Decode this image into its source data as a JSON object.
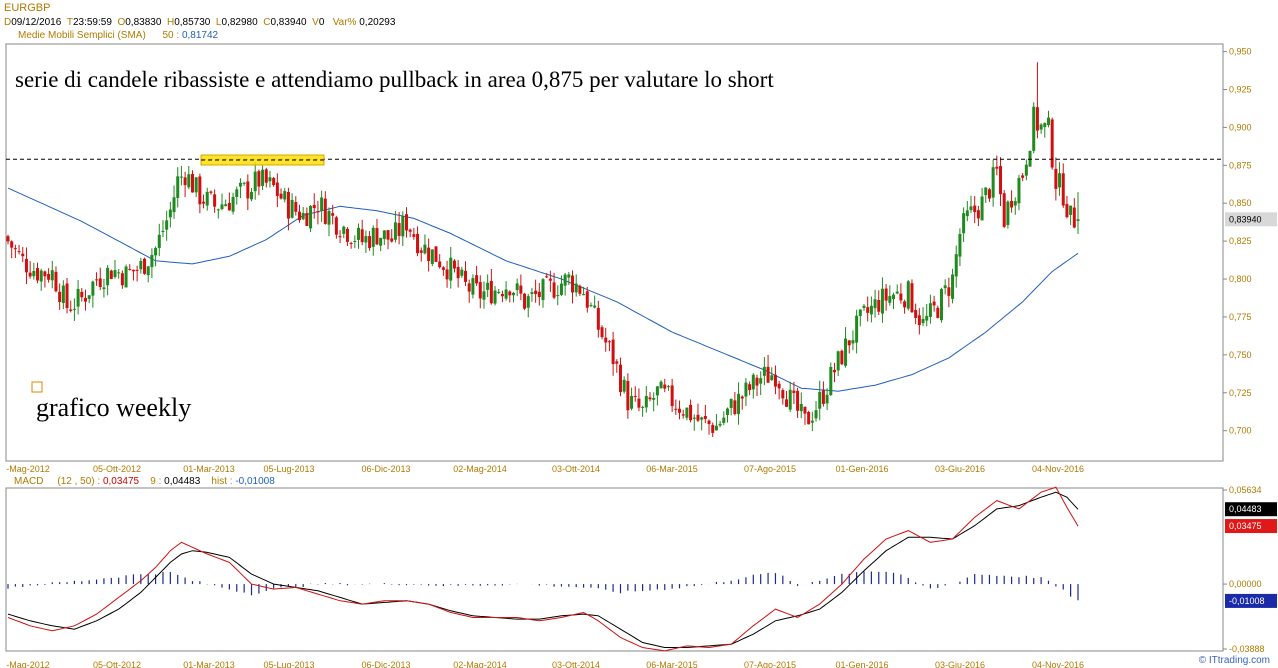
{
  "header": {
    "symbol": "EURGBP",
    "d_label": "D",
    "date": "09/12/2016",
    "t_label": "T",
    "time": "23:59:59",
    "o_label": "O",
    "open": "0,83830",
    "h_label": "H",
    "high": "0,85730",
    "l_label": "L",
    "low": "0,82980",
    "c_label": "C",
    "close": "0,83940",
    "v_label": "V",
    "volume": "0",
    "var_label": "Var%",
    "var": "0,20293",
    "sma_label": "Medie Mobili Semplici (SMA)",
    "sma_period": "50",
    "sma_value": "0,81742"
  },
  "annotations": {
    "main_text": "serie di candele ribassiste e attendiamo pullback in area 0,875 per valutare lo short",
    "weekly_text": "grafico weekly"
  },
  "macd_header": {
    "name": "MACD",
    "params": "(12 , 50)",
    "macd_value": "0,03475",
    "signal_period": "9",
    "signal_value": "0,04483",
    "hist_label": "hist",
    "hist_value": "-0,01008"
  },
  "credit": "© ITtrading.com",
  "colors": {
    "bull": "#1f8a1f",
    "bear": "#d01010",
    "sma": "#1f5fbf",
    "macd_line": "#d01010",
    "signal_line": "#000000",
    "hist": "#1a2a8c",
    "highlight": "#ffe000"
  },
  "chart_data": [
    {
      "type": "candlestick",
      "title": "EURGBP",
      "x_tick_labels": [
        "-Mag-2012",
        "05-Ott-2012",
        "01-Mar-2013",
        "05-Lug-2013",
        "06-Dic-2013",
        "02-Mag-2014",
        "03-Ott-2014",
        "06-Mar-2015",
        "07-Ago-2015",
        "01-Gen-2016",
        "03-Giu-2016",
        "04-Nov-2016"
      ],
      "y_tick_labels": [
        "0,950",
        "0,925",
        "0,900",
        "0,875",
        "0,850",
        "0,825",
        "0,800",
        "0,775",
        "0,750",
        "0,725",
        "0,700"
      ],
      "ylim": [
        0.68,
        0.955
      ],
      "last_price_label": "0,83940",
      "reference_level": 0.879,
      "close_path": [
        {
          "week": 0,
          "close": 0.825
        },
        {
          "week": 4,
          "close": 0.812
        },
        {
          "week": 8,
          "close": 0.805
        },
        {
          "week": 12,
          "close": 0.804
        },
        {
          "week": 16,
          "close": 0.782
        },
        {
          "week": 20,
          "close": 0.787
        },
        {
          "week": 24,
          "close": 0.8
        },
        {
          "week": 28,
          "close": 0.806
        },
        {
          "week": 32,
          "close": 0.803
        },
        {
          "week": 36,
          "close": 0.808
        },
        {
          "week": 40,
          "close": 0.82
        },
        {
          "week": 44,
          "close": 0.845
        },
        {
          "week": 46,
          "close": 0.865
        },
        {
          "week": 48,
          "close": 0.87
        },
        {
          "week": 52,
          "close": 0.855
        },
        {
          "week": 56,
          "close": 0.848
        },
        {
          "week": 60,
          "close": 0.852
        },
        {
          "week": 64,
          "close": 0.858
        },
        {
          "week": 68,
          "close": 0.865
        },
        {
          "week": 72,
          "close": 0.86
        },
        {
          "week": 76,
          "close": 0.848
        },
        {
          "week": 80,
          "close": 0.842
        },
        {
          "week": 84,
          "close": 0.85
        },
        {
          "week": 88,
          "close": 0.84
        },
        {
          "week": 92,
          "close": 0.832
        },
        {
          "week": 96,
          "close": 0.825
        },
        {
          "week": 100,
          "close": 0.83
        },
        {
          "week": 104,
          "close": 0.826
        },
        {
          "week": 108,
          "close": 0.838
        },
        {
          "week": 112,
          "close": 0.822
        },
        {
          "week": 116,
          "close": 0.815
        },
        {
          "week": 120,
          "close": 0.806
        },
        {
          "week": 124,
          "close": 0.795
        },
        {
          "week": 128,
          "close": 0.79
        },
        {
          "week": 132,
          "close": 0.793
        },
        {
          "week": 136,
          "close": 0.797
        },
        {
          "week": 140,
          "close": 0.785
        },
        {
          "week": 144,
          "close": 0.79
        },
        {
          "week": 148,
          "close": 0.795
        },
        {
          "week": 152,
          "close": 0.8
        },
        {
          "week": 156,
          "close": 0.792
        },
        {
          "week": 160,
          "close": 0.768
        },
        {
          "week": 164,
          "close": 0.748
        },
        {
          "week": 168,
          "close": 0.72
        },
        {
          "week": 172,
          "close": 0.712
        },
        {
          "week": 176,
          "close": 0.725
        },
        {
          "week": 180,
          "close": 0.72
        },
        {
          "week": 184,
          "close": 0.713
        },
        {
          "week": 188,
          "close": 0.705
        },
        {
          "week": 192,
          "close": 0.703
        },
        {
          "week": 196,
          "close": 0.715
        },
        {
          "week": 200,
          "close": 0.725
        },
        {
          "week": 204,
          "close": 0.735
        },
        {
          "week": 208,
          "close": 0.738
        },
        {
          "week": 212,
          "close": 0.72
        },
        {
          "week": 216,
          "close": 0.705
        },
        {
          "week": 220,
          "close": 0.72
        },
        {
          "week": 224,
          "close": 0.74
        },
        {
          "week": 228,
          "close": 0.76
        },
        {
          "week": 232,
          "close": 0.775
        },
        {
          "week": 236,
          "close": 0.785
        },
        {
          "week": 240,
          "close": 0.79
        },
        {
          "week": 244,
          "close": 0.79
        },
        {
          "week": 248,
          "close": 0.77
        },
        {
          "week": 252,
          "close": 0.782
        },
        {
          "week": 256,
          "close": 0.8
        },
        {
          "week": 258,
          "close": 0.83
        },
        {
          "week": 260,
          "close": 0.84
        },
        {
          "week": 264,
          "close": 0.85
        },
        {
          "week": 268,
          "close": 0.87
        },
        {
          "week": 270,
          "close": 0.84
        },
        {
          "week": 272,
          "close": 0.855
        },
        {
          "week": 275,
          "close": 0.87
        },
        {
          "week": 278,
          "close": 0.905
        },
        {
          "week": 280,
          "close": 0.9
        },
        {
          "week": 282,
          "close": 0.898
        },
        {
          "week": 284,
          "close": 0.865
        },
        {
          "week": 286,
          "close": 0.857
        },
        {
          "week": 288,
          "close": 0.84
        },
        {
          "week": 290,
          "close": 0.8394
        }
      ],
      "sma_path": [
        {
          "week": 0,
          "value": 0.86
        },
        {
          "week": 20,
          "value": 0.838
        },
        {
          "week": 40,
          "value": 0.812
        },
        {
          "week": 50,
          "value": 0.81
        },
        {
          "week": 60,
          "value": 0.815
        },
        {
          "week": 70,
          "value": 0.826
        },
        {
          "week": 80,
          "value": 0.842
        },
        {
          "week": 90,
          "value": 0.848
        },
        {
          "week": 100,
          "value": 0.845
        },
        {
          "week": 110,
          "value": 0.84
        },
        {
          "week": 120,
          "value": 0.83
        },
        {
          "week": 135,
          "value": 0.812
        },
        {
          "week": 150,
          "value": 0.8
        },
        {
          "week": 165,
          "value": 0.785
        },
        {
          "week": 180,
          "value": 0.765
        },
        {
          "week": 195,
          "value": 0.75
        },
        {
          "week": 205,
          "value": 0.74
        },
        {
          "week": 215,
          "value": 0.728
        },
        {
          "week": 225,
          "value": 0.726
        },
        {
          "week": 235,
          "value": 0.73
        },
        {
          "week": 245,
          "value": 0.737
        },
        {
          "week": 255,
          "value": 0.748
        },
        {
          "week": 265,
          "value": 0.765
        },
        {
          "week": 275,
          "value": 0.785
        },
        {
          "week": 283,
          "value": 0.805
        },
        {
          "week": 290,
          "value": 0.817
        }
      ],
      "sma_last": 0.81742
    },
    {
      "type": "line",
      "title": "MACD",
      "y_tick_labels": [
        "0,05634",
        "0,00000",
        "-0,03888"
      ],
      "ylim": [
        -0.03888,
        0.05634
      ],
      "last_value_labels": {
        "signal": "0,04483",
        "macd": "0,03475",
        "hist": "-0,01008"
      },
      "series": [
        {
          "name": "MACD",
          "values": [
            [
              0,
              -0.02
            ],
            [
              6,
              -0.025
            ],
            [
              12,
              -0.028
            ],
            [
              18,
              -0.025
            ],
            [
              24,
              -0.018
            ],
            [
              30,
              -0.008
            ],
            [
              36,
              0.002
            ],
            [
              40,
              0.01
            ],
            [
              44,
              0.02
            ],
            [
              47,
              0.025
            ],
            [
              50,
              0.022
            ],
            [
              54,
              0.018
            ],
            [
              60,
              0.013
            ],
            [
              66,
              0.0
            ],
            [
              72,
              -0.003
            ],
            [
              78,
              -0.002
            ],
            [
              84,
              -0.006
            ],
            [
              90,
              -0.01
            ],
            [
              96,
              -0.012
            ],
            [
              102,
              -0.01
            ],
            [
              108,
              -0.01
            ],
            [
              114,
              -0.012
            ],
            [
              120,
              -0.017
            ],
            [
              126,
              -0.02
            ],
            [
              132,
              -0.02
            ],
            [
              138,
              -0.02
            ],
            [
              144,
              -0.022
            ],
            [
              150,
              -0.02
            ],
            [
              156,
              -0.017
            ],
            [
              160,
              -0.022
            ],
            [
              166,
              -0.032
            ],
            [
              172,
              -0.038
            ],
            [
              178,
              -0.04
            ],
            [
              184,
              -0.037
            ],
            [
              190,
              -0.038
            ],
            [
              196,
              -0.036
            ],
            [
              202,
              -0.025
            ],
            [
              208,
              -0.015
            ],
            [
              214,
              -0.02
            ],
            [
              220,
              -0.012
            ],
            [
              226,
              0.0
            ],
            [
              232,
              0.015
            ],
            [
              238,
              0.027
            ],
            [
              244,
              0.032
            ],
            [
              250,
              0.025
            ],
            [
              256,
              0.027
            ],
            [
              262,
              0.04
            ],
            [
              268,
              0.05
            ],
            [
              274,
              0.045
            ],
            [
              280,
              0.055
            ],
            [
              284,
              0.058
            ],
            [
              287,
              0.046
            ],
            [
              290,
              0.0347
            ]
          ]
        },
        {
          "name": "Signal",
          "values": [
            [
              0,
              -0.018
            ],
            [
              6,
              -0.022
            ],
            [
              12,
              -0.025
            ],
            [
              18,
              -0.027
            ],
            [
              24,
              -0.022
            ],
            [
              30,
              -0.015
            ],
            [
              36,
              -0.005
            ],
            [
              40,
              0.004
            ],
            [
              44,
              0.013
            ],
            [
              47,
              0.018
            ],
            [
              50,
              0.02
            ],
            [
              54,
              0.019
            ],
            [
              60,
              0.016
            ],
            [
              66,
              0.006
            ],
            [
              72,
              0.0
            ],
            [
              78,
              -0.002
            ],
            [
              84,
              -0.004
            ],
            [
              90,
              -0.008
            ],
            [
              96,
              -0.012
            ],
            [
              102,
              -0.011
            ],
            [
              108,
              -0.01
            ],
            [
              114,
              -0.012
            ],
            [
              120,
              -0.016
            ],
            [
              126,
              -0.019
            ],
            [
              132,
              -0.02
            ],
            [
              138,
              -0.021
            ],
            [
              144,
              -0.021
            ],
            [
              150,
              -0.019
            ],
            [
              156,
              -0.018
            ],
            [
              160,
              -0.019
            ],
            [
              166,
              -0.027
            ],
            [
              172,
              -0.035
            ],
            [
              178,
              -0.038
            ],
            [
              184,
              -0.038
            ],
            [
              190,
              -0.037
            ],
            [
              196,
              -0.036
            ],
            [
              202,
              -0.03
            ],
            [
              208,
              -0.022
            ],
            [
              214,
              -0.019
            ],
            [
              220,
              -0.015
            ],
            [
              226,
              -0.005
            ],
            [
              232,
              0.008
            ],
            [
              238,
              0.02
            ],
            [
              244,
              0.028
            ],
            [
              250,
              0.028
            ],
            [
              256,
              0.027
            ],
            [
              262,
              0.035
            ],
            [
              268,
              0.045
            ],
            [
              274,
              0.047
            ],
            [
              280,
              0.052
            ],
            [
              284,
              0.055
            ],
            [
              287,
              0.052
            ],
            [
              290,
              0.0448
            ]
          ]
        },
        {
          "name": "hist",
          "values": [
            [
              0,
              -0.002
            ],
            [
              20,
              0.002
            ],
            [
              36,
              0.006
            ],
            [
              44,
              0.007
            ],
            [
              50,
              0.002
            ],
            [
              60,
              -0.003
            ],
            [
              66,
              -0.006
            ],
            [
              72,
              -0.003
            ],
            [
              84,
              0.0
            ],
            [
              96,
              0.0
            ],
            [
              108,
              0.0
            ],
            [
              120,
              -0.001
            ],
            [
              140,
              0.0
            ],
            [
              156,
              -0.002
            ],
            [
              166,
              -0.005
            ],
            [
              178,
              -0.003
            ],
            [
              190,
              0.0
            ],
            [
              202,
              0.005
            ],
            [
              208,
              0.007
            ],
            [
              214,
              -0.001
            ],
            [
              226,
              0.006
            ],
            [
              232,
              0.008
            ],
            [
              240,
              0.007
            ],
            [
              250,
              -0.003
            ],
            [
              256,
              0.0
            ],
            [
              262,
              0.006
            ],
            [
              270,
              0.005
            ],
            [
              280,
              0.004
            ],
            [
              286,
              -0.004
            ],
            [
              290,
              -0.01
            ]
          ]
        }
      ]
    }
  ]
}
